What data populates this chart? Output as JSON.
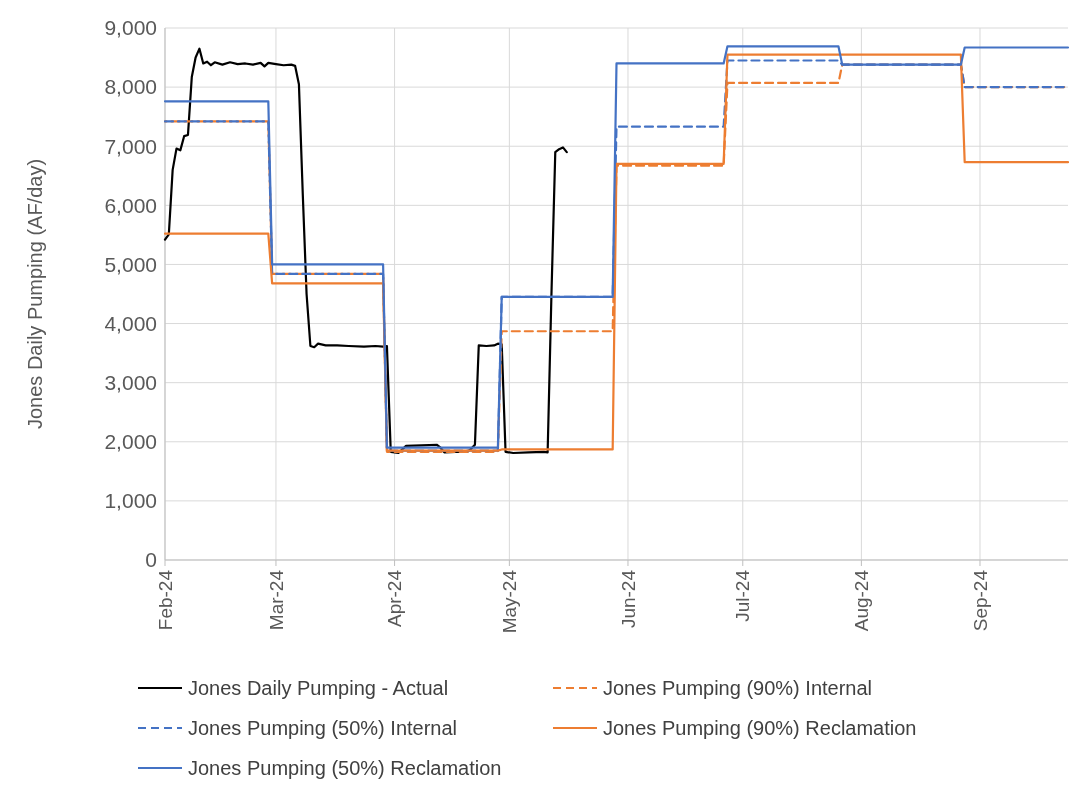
{
  "chart_data": {
    "type": "line",
    "ylabel": "Jones Daily Pumping (AF/day)",
    "xlim": [
      "2024-02-01",
      "2024-09-24"
    ],
    "xticks": [
      {
        "value": "2024-02-01",
        "label": "Feb-24"
      },
      {
        "value": "2024-03-01",
        "label": "Mar-24"
      },
      {
        "value": "2024-04-01",
        "label": "Apr-24"
      },
      {
        "value": "2024-05-01",
        "label": "May-24"
      },
      {
        "value": "2024-06-01",
        "label": "Jun-24"
      },
      {
        "value": "2024-07-01",
        "label": "Jul-24"
      },
      {
        "value": "2024-08-01",
        "label": "Aug-24"
      },
      {
        "value": "2024-09-01",
        "label": "Sep-24"
      }
    ],
    "ylim": [
      0,
      9000
    ],
    "yticks": [
      {
        "value": 0,
        "label": "0"
      },
      {
        "value": 1000,
        "label": "1,000"
      },
      {
        "value": 2000,
        "label": "2,000"
      },
      {
        "value": 3000,
        "label": "3,000"
      },
      {
        "value": 4000,
        "label": "4,000"
      },
      {
        "value": 5000,
        "label": "5,000"
      },
      {
        "value": 6000,
        "label": "6,000"
      },
      {
        "value": 7000,
        "label": "7,000"
      },
      {
        "value": 8000,
        "label": "8,000"
      },
      {
        "value": 9000,
        "label": "9,000"
      }
    ],
    "grid": true,
    "legend": "bottom",
    "marker": "none",
    "series": [
      {
        "name": "Jones Daily Pumping - Actual",
        "color": "#000000",
        "line_style": "solid",
        "x": [
          "2024-02-01",
          "2024-02-02",
          "2024-02-03",
          "2024-02-04",
          "2024-02-05",
          "2024-02-06",
          "2024-02-07",
          "2024-02-08",
          "2024-02-09",
          "2024-02-10",
          "2024-02-11",
          "2024-02-12",
          "2024-02-13",
          "2024-02-14",
          "2024-02-16",
          "2024-02-18",
          "2024-02-20",
          "2024-02-22",
          "2024-02-24",
          "2024-02-26",
          "2024-02-27",
          "2024-02-28",
          "2024-03-01",
          "2024-03-03",
          "2024-03-05",
          "2024-03-06",
          "2024-03-07",
          "2024-03-08",
          "2024-03-09",
          "2024-03-10",
          "2024-03-11",
          "2024-03-12",
          "2024-03-14",
          "2024-03-17",
          "2024-03-20",
          "2024-03-24",
          "2024-03-27",
          "2024-03-29",
          "2024-03-30",
          "2024-03-31",
          "2024-04-02",
          "2024-04-04",
          "2024-04-08",
          "2024-04-12",
          "2024-04-13",
          "2024-04-14",
          "2024-04-17",
          "2024-04-20",
          "2024-04-21",
          "2024-04-22",
          "2024-04-23",
          "2024-04-25",
          "2024-04-27",
          "2024-04-28",
          "2024-04-29",
          "2024-04-30",
          "2024-05-02",
          "2024-05-06",
          "2024-05-10",
          "2024-05-11",
          "2024-05-12",
          "2024-05-13",
          "2024-05-14",
          "2024-05-15",
          "2024-05-16"
        ],
        "values": [
          5420,
          5510,
          6600,
          6960,
          6930,
          7170,
          7190,
          8170,
          8500,
          8650,
          8400,
          8430,
          8370,
          8420,
          8380,
          8420,
          8390,
          8400,
          8380,
          8410,
          8350,
          8410,
          8390,
          8370,
          8380,
          8360,
          8050,
          6200,
          4500,
          3620,
          3600,
          3660,
          3630,
          3630,
          3620,
          3610,
          3620,
          3610,
          3620,
          1830,
          1810,
          1930,
          1940,
          1950,
          1900,
          1820,
          1830,
          1830,
          1880,
          1950,
          3630,
          3620,
          3630,
          3660,
          3650,
          1830,
          1810,
          1820,
          1830,
          1820,
          4500,
          6900,
          6950,
          6980,
          6900
        ]
      },
      {
        "name": "Jones Pumping (90%) Internal",
        "color": "#ed7d31",
        "line_style": "dashed",
        "x": [
          "2024-02-01",
          "2024-02-28",
          "2024-02-29",
          "2024-03-29",
          "2024-03-30",
          "2024-04-28",
          "2024-04-29",
          "2024-05-28",
          "2024-05-29",
          "2024-06-26",
          "2024-06-27",
          "2024-07-26",
          "2024-07-27",
          "2024-08-27",
          "2024-08-28",
          "2024-09-24"
        ],
        "values": [
          7420,
          7420,
          4840,
          4840,
          1830,
          1830,
          3870,
          3870,
          6670,
          6670,
          8070,
          8070,
          8380,
          8380,
          8000,
          8000
        ]
      },
      {
        "name": "Jones Pumping (50%) Internal",
        "color": "#4472c4",
        "line_style": "dashed",
        "x": [
          "2024-02-01",
          "2024-02-28",
          "2024-02-29",
          "2024-03-29",
          "2024-03-30",
          "2024-04-28",
          "2024-04-29",
          "2024-05-28",
          "2024-05-29",
          "2024-06-26",
          "2024-06-27",
          "2024-07-26",
          "2024-07-27",
          "2024-08-27",
          "2024-08-28",
          "2024-09-24"
        ],
        "values": [
          7420,
          7420,
          4840,
          4840,
          1850,
          1850,
          4450,
          4450,
          7330,
          7330,
          8450,
          8450,
          8380,
          8380,
          8000,
          8000
        ]
      },
      {
        "name": "Jones Pumping (90%) Reclamation",
        "color": "#ed7d31",
        "line_style": "solid",
        "x": [
          "2024-02-01",
          "2024-02-28",
          "2024-02-29",
          "2024-03-29",
          "2024-03-30",
          "2024-04-28",
          "2024-04-29",
          "2024-05-28",
          "2024-05-29",
          "2024-06-26",
          "2024-06-27",
          "2024-07-26",
          "2024-07-27",
          "2024-08-27",
          "2024-08-28",
          "2024-09-24"
        ],
        "values": [
          5520,
          5520,
          4680,
          4680,
          1850,
          1850,
          1870,
          1870,
          6700,
          6700,
          8550,
          8550,
          8550,
          8550,
          6730,
          6730
        ]
      },
      {
        "name": "Jones Pumping (50%) Reclamation",
        "color": "#4472c4",
        "line_style": "solid",
        "x": [
          "2024-02-01",
          "2024-02-28",
          "2024-02-29",
          "2024-03-29",
          "2024-03-30",
          "2024-04-28",
          "2024-04-29",
          "2024-05-28",
          "2024-05-29",
          "2024-06-26",
          "2024-06-27",
          "2024-07-26",
          "2024-07-27",
          "2024-08-27",
          "2024-08-28",
          "2024-09-24"
        ],
        "values": [
          7760,
          7760,
          5000,
          5000,
          1900,
          1900,
          4450,
          4450,
          8400,
          8400,
          8690,
          8690,
          8380,
          8380,
          8670,
          8670
        ]
      }
    ]
  }
}
